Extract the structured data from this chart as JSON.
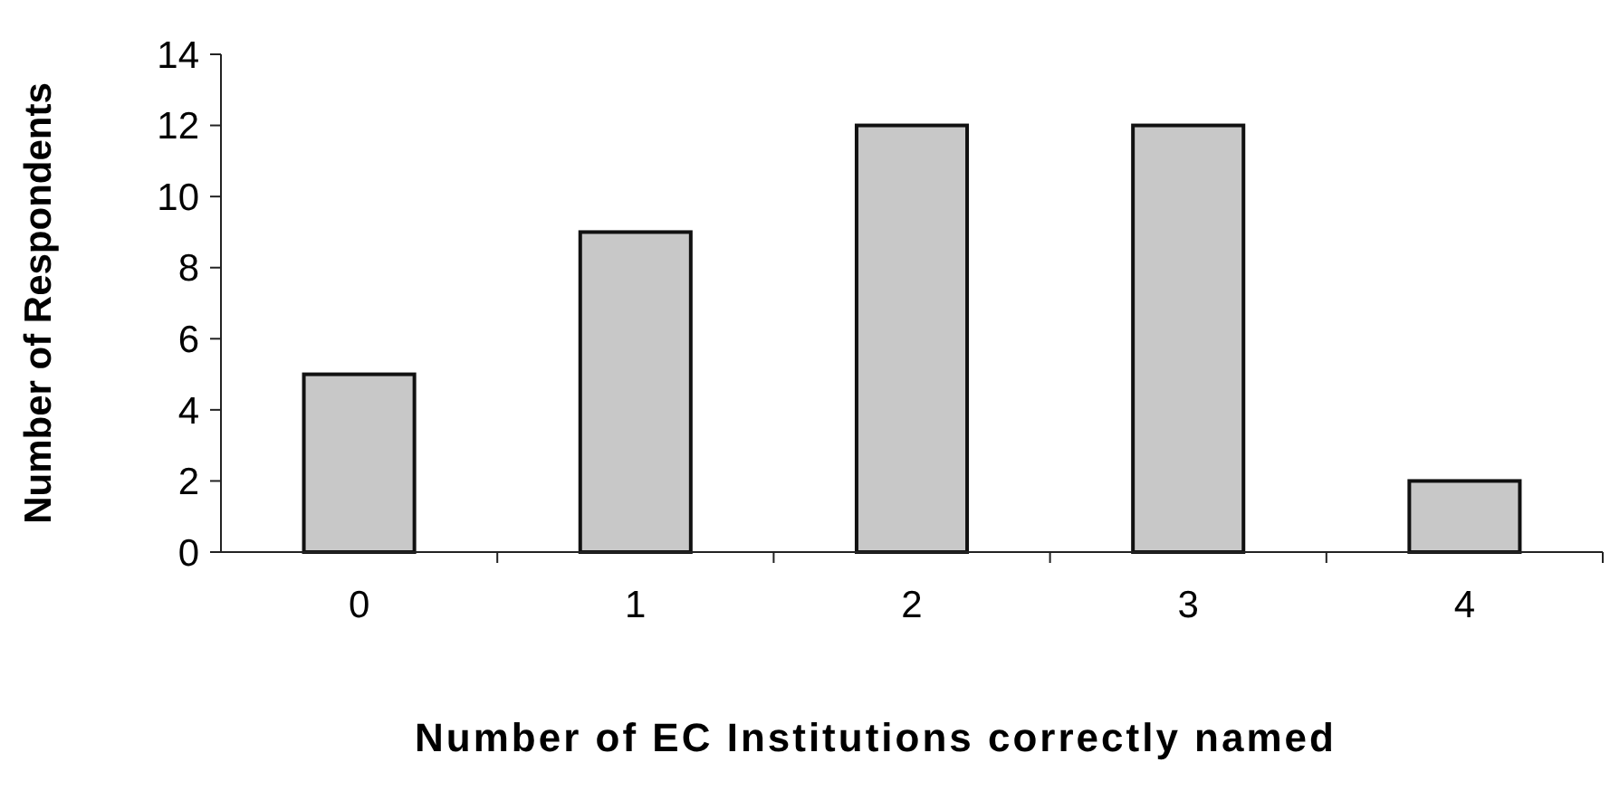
{
  "chart_data": {
    "type": "bar",
    "xlabel": "Number of EC Institutions correctly named",
    "ylabel": "Number of Respondents",
    "categories": [
      "0",
      "1",
      "2",
      "3",
      "4"
    ],
    "values": [
      5,
      9,
      12,
      12,
      2
    ],
    "color": "#c8c8c8",
    "ylim": [
      0,
      14
    ],
    "yticks": [
      0,
      2,
      4,
      6,
      8,
      10,
      12,
      14
    ],
    "grid": false
  }
}
